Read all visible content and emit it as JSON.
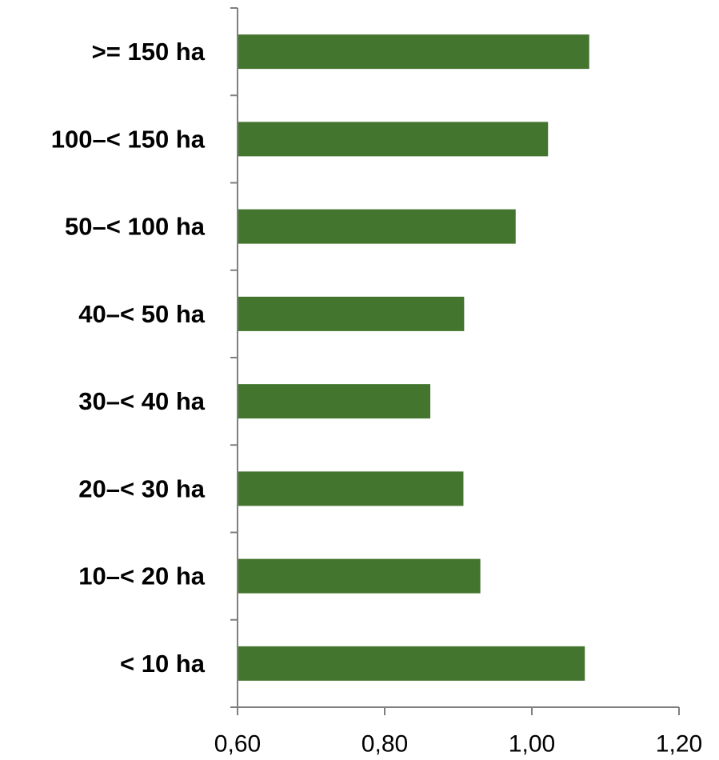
{
  "chart_data": {
    "type": "bar",
    "orientation": "horizontal",
    "categories": [
      "< 10 ha",
      "10–< 20 ha",
      "20–< 30 ha",
      "30–< 40 ha",
      "40–< 50 ha",
      "50–< 100 ha",
      "100–< 150 ha",
      ">= 150 ha"
    ],
    "values": [
      1.072,
      0.93,
      0.907,
      0.862,
      0.908,
      0.978,
      1.022,
      1.078
    ],
    "x_ticks": [
      "0,60",
      "0,80",
      "1,00",
      "1,20"
    ],
    "xlim": [
      0.6,
      1.2
    ],
    "bar_color": "#44752f",
    "axis_color": "#7f7f7f",
    "grid": false,
    "legend": "none"
  }
}
